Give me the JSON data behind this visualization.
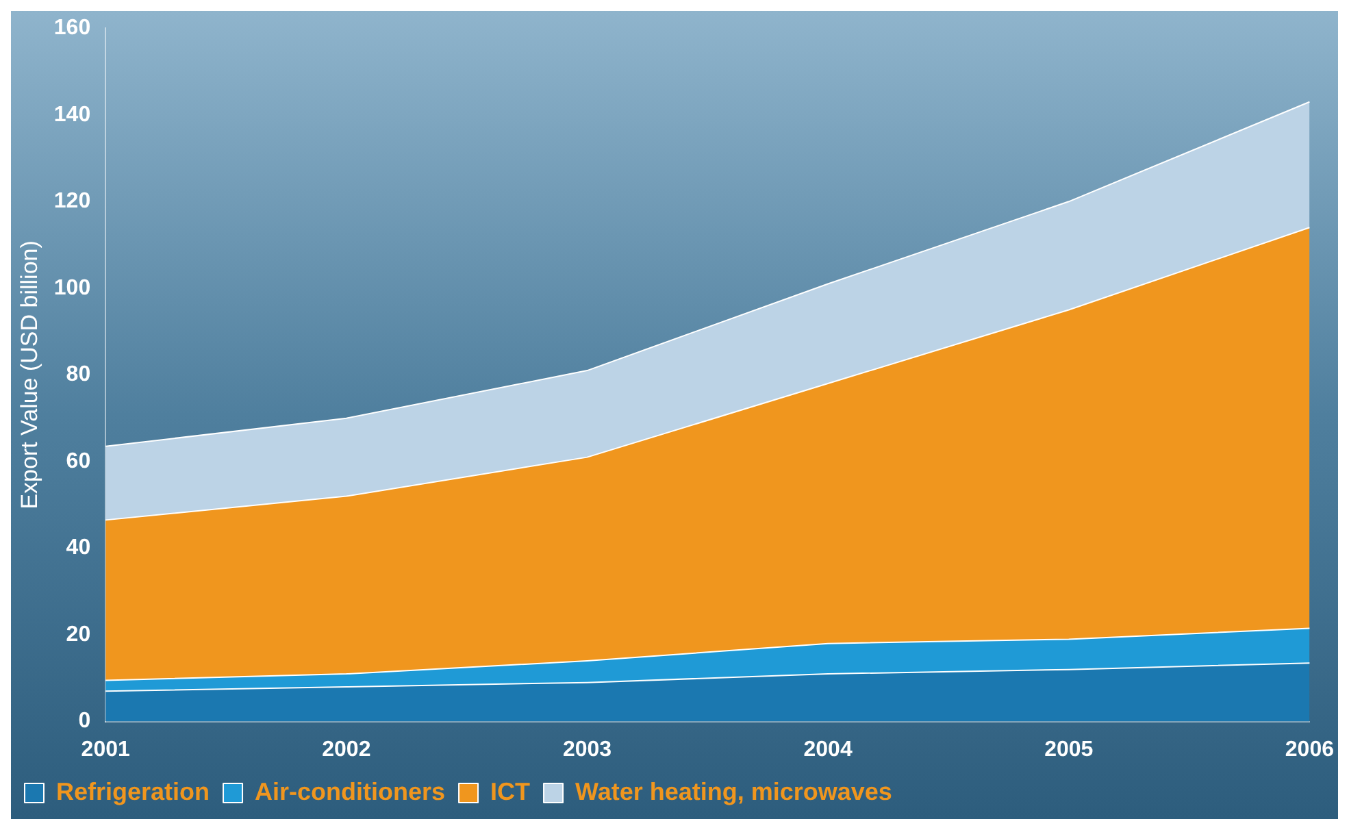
{
  "chart_data": {
    "type": "area",
    "stacked": true,
    "ylabel": "Export Value (USD billion)",
    "categories": [
      "2001",
      "2002",
      "2003",
      "2004",
      "2005",
      "2006"
    ],
    "series": [
      {
        "name": "Refrigeration",
        "color": "#1b78b0",
        "values": [
          7,
          8,
          9,
          11,
          12,
          13.5
        ]
      },
      {
        "name": "Air-conditioners",
        "color": "#1f9ad6",
        "values": [
          2.5,
          3,
          5,
          7,
          7,
          8
        ]
      },
      {
        "name": "ICT",
        "color": "#f0961e",
        "values": [
          37,
          41,
          47,
          60,
          76,
          92.5
        ]
      },
      {
        "name": "Water heating, microwaves",
        "color": "#bcd3e6",
        "values": [
          17,
          18,
          20,
          23,
          25,
          29
        ]
      }
    ],
    "ylim": [
      0,
      160
    ],
    "yticks": [
      0,
      20,
      40,
      60,
      80,
      100,
      120,
      140,
      160
    ],
    "legend": "bottom"
  }
}
